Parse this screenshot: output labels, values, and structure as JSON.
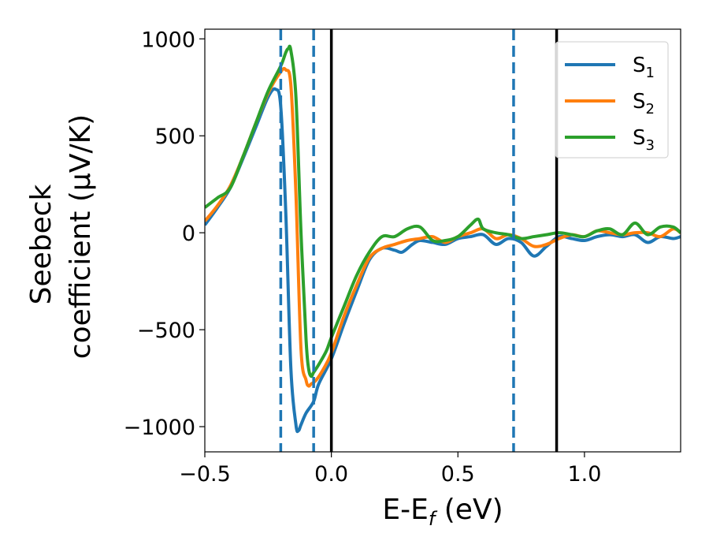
{
  "chart_data": {
    "type": "line",
    "xlabel": "E-E",
    "xlabel_sub": "f",
    "xlabel_unit": " (eV)",
    "ylabel_line1": "Seebeck",
    "ylabel_line2": "coefficient  (μV/K)",
    "xlim": [
      -0.5,
      1.38
    ],
    "ylim": [
      -1130,
      1050
    ],
    "xticks": [
      -0.5,
      0.0,
      0.5,
      1.0
    ],
    "xtick_labels": [
      "−0.5",
      "0.0",
      "0.5",
      "1.0"
    ],
    "yticks": [
      -1000,
      -500,
      0,
      500,
      1000
    ],
    "ytick_labels": [
      "−1000",
      "−500",
      "0",
      "500",
      "1000"
    ],
    "grid": false,
    "legend_position": "top-right",
    "vlines_solid": [
      0.0,
      0.89
    ],
    "vlines_dashed": [
      -0.2,
      -0.07,
      0.72
    ],
    "series": [
      {
        "name": "S",
        "name_sub": "1",
        "color": "#1f77b4",
        "x": [
          -0.5,
          -0.45,
          -0.4,
          -0.35,
          -0.3,
          -0.25,
          -0.22,
          -0.2,
          -0.18,
          -0.16,
          -0.14,
          -0.13,
          -0.12,
          -0.1,
          -0.07,
          -0.05,
          0.0,
          0.05,
          0.1,
          0.15,
          0.2,
          0.25,
          0.28,
          0.32,
          0.35,
          0.4,
          0.45,
          0.5,
          0.55,
          0.6,
          0.65,
          0.7,
          0.75,
          0.8,
          0.85,
          0.9,
          0.95,
          1.0,
          1.05,
          1.1,
          1.15,
          1.2,
          1.25,
          1.3,
          1.35,
          1.38
        ],
        "y": [
          40,
          130,
          230,
          380,
          540,
          700,
          740,
          650,
          100,
          -700,
          -990,
          -1020,
          -990,
          -930,
          -870,
          -780,
          -650,
          -470,
          -300,
          -140,
          -80,
          -90,
          -100,
          -60,
          -40,
          -50,
          -60,
          -30,
          -20,
          -10,
          -60,
          -30,
          -50,
          -120,
          -70,
          -20,
          -30,
          -40,
          -20,
          -10,
          -20,
          -10,
          -50,
          -20,
          -30,
          -20
        ]
      },
      {
        "name": "S",
        "name_sub": "2",
        "color": "#ff7f0e",
        "x": [
          -0.5,
          -0.45,
          -0.4,
          -0.35,
          -0.3,
          -0.25,
          -0.2,
          -0.18,
          -0.16,
          -0.14,
          -0.12,
          -0.1,
          -0.09,
          -0.08,
          -0.06,
          -0.03,
          0.0,
          0.05,
          0.1,
          0.15,
          0.2,
          0.25,
          0.3,
          0.35,
          0.4,
          0.45,
          0.5,
          0.55,
          0.6,
          0.65,
          0.7,
          0.75,
          0.8,
          0.85,
          0.9,
          0.95,
          1.0,
          1.05,
          1.1,
          1.15,
          1.2,
          1.25,
          1.3,
          1.35,
          1.38
        ],
        "y": [
          60,
          140,
          240,
          390,
          560,
          720,
          830,
          840,
          760,
          200,
          -600,
          -760,
          -790,
          -780,
          -760,
          -700,
          -620,
          -430,
          -270,
          -130,
          -80,
          -60,
          -40,
          -30,
          -20,
          -50,
          -20,
          0,
          20,
          -30,
          -10,
          -30,
          -70,
          -60,
          -30,
          -10,
          -20,
          10,
          0,
          -10,
          0,
          0,
          -20,
          20,
          0
        ]
      },
      {
        "name": "S",
        "name_sub": "3",
        "color": "#2ca02c",
        "x": [
          -0.5,
          -0.45,
          -0.4,
          -0.35,
          -0.3,
          -0.25,
          -0.2,
          -0.18,
          -0.17,
          -0.16,
          -0.14,
          -0.12,
          -0.1,
          -0.09,
          -0.08,
          -0.07,
          -0.05,
          -0.02,
          0.0,
          0.05,
          0.1,
          0.15,
          0.2,
          0.25,
          0.3,
          0.35,
          0.4,
          0.45,
          0.5,
          0.55,
          0.58,
          0.6,
          0.65,
          0.7,
          0.75,
          0.8,
          0.85,
          0.9,
          0.95,
          1.0,
          1.05,
          1.1,
          1.15,
          1.2,
          1.25,
          1.3,
          1.35,
          1.38
        ],
        "y": [
          130,
          180,
          230,
          390,
          560,
          730,
          860,
          930,
          950,
          940,
          700,
          0,
          -550,
          -700,
          -740,
          -720,
          -680,
          -610,
          -540,
          -380,
          -220,
          -100,
          -20,
          -20,
          20,
          30,
          -40,
          -40,
          -20,
          40,
          70,
          20,
          0,
          -10,
          -30,
          -20,
          -10,
          0,
          -10,
          -20,
          10,
          20,
          -10,
          50,
          -10,
          30,
          30,
          0
        ]
      }
    ]
  }
}
